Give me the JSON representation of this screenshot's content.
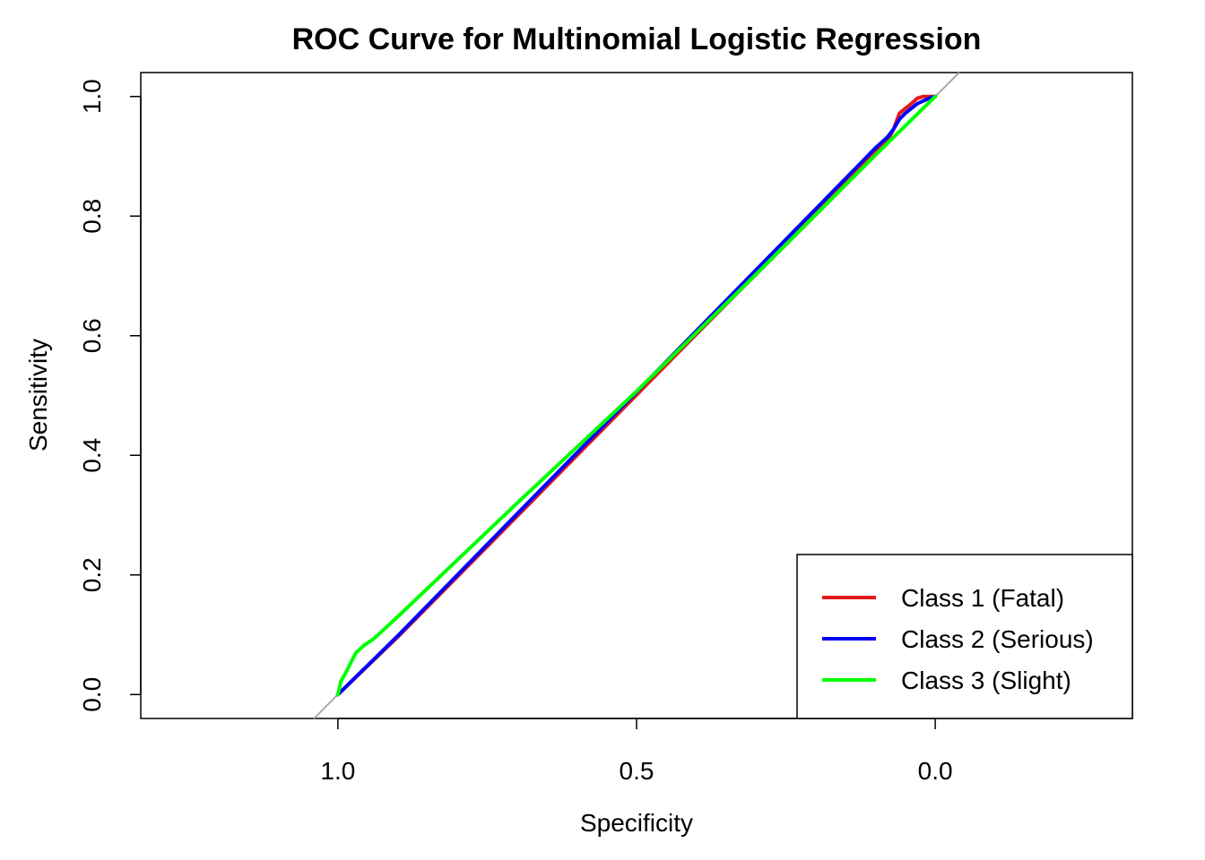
{
  "chart_data": {
    "type": "line",
    "title": "ROC Curve for Multinomial Logistic Regression",
    "xlabel": "Specificity",
    "ylabel": "Sensitivity",
    "xlim": [
      1.33,
      -0.33
    ],
    "ylim": [
      -0.04,
      1.04
    ],
    "x_reversed": true,
    "xticks": [
      1.0,
      0.5,
      0.0
    ],
    "xtick_labels": [
      "1.0",
      "0.5",
      "0.0"
    ],
    "yticks": [
      0.0,
      0.2,
      0.4,
      0.6,
      0.8,
      1.0
    ],
    "ytick_labels": [
      "0.0",
      "0.2",
      "0.4",
      "0.6",
      "0.8",
      "1.0"
    ],
    "reference_line": {
      "color": "#aaaaaa",
      "from": [
        1,
        0
      ],
      "to": [
        0,
        1
      ]
    },
    "grid": false,
    "legend_position": "bottom-right",
    "series": [
      {
        "name": "Class 1 (Fatal)",
        "color": "#e31a1c",
        "x": [
          1.0,
          0.9,
          0.7,
          0.5,
          0.3,
          0.1,
          0.08,
          0.07,
          0.06,
          0.04,
          0.03,
          0.02,
          0.0
        ],
        "y": [
          0.0,
          0.096,
          0.298,
          0.501,
          0.704,
          0.907,
          0.925,
          0.945,
          0.972,
          0.988,
          0.997,
          1.0,
          1.0
        ]
      },
      {
        "name": "Class 2 (Serious)",
        "color": "#0000ff",
        "x": [
          1.0,
          0.9,
          0.7,
          0.5,
          0.3,
          0.1,
          0.08,
          0.07,
          0.06,
          0.05,
          0.03,
          0.01,
          0.0
        ],
        "y": [
          0.0,
          0.098,
          0.302,
          0.506,
          0.71,
          0.914,
          0.932,
          0.945,
          0.962,
          0.972,
          0.988,
          0.997,
          1.0
        ]
      },
      {
        "name": "Class 3 (Slight)",
        "color": "#00ff00",
        "x": [
          1.0,
          0.995,
          0.985,
          0.97,
          0.955,
          0.94,
          0.9,
          0.7,
          0.5,
          0.3,
          0.1,
          0.0
        ],
        "y": [
          0.0,
          0.022,
          0.04,
          0.07,
          0.083,
          0.093,
          0.13,
          0.32,
          0.507,
          0.703,
          0.902,
          1.0
        ]
      }
    ]
  }
}
